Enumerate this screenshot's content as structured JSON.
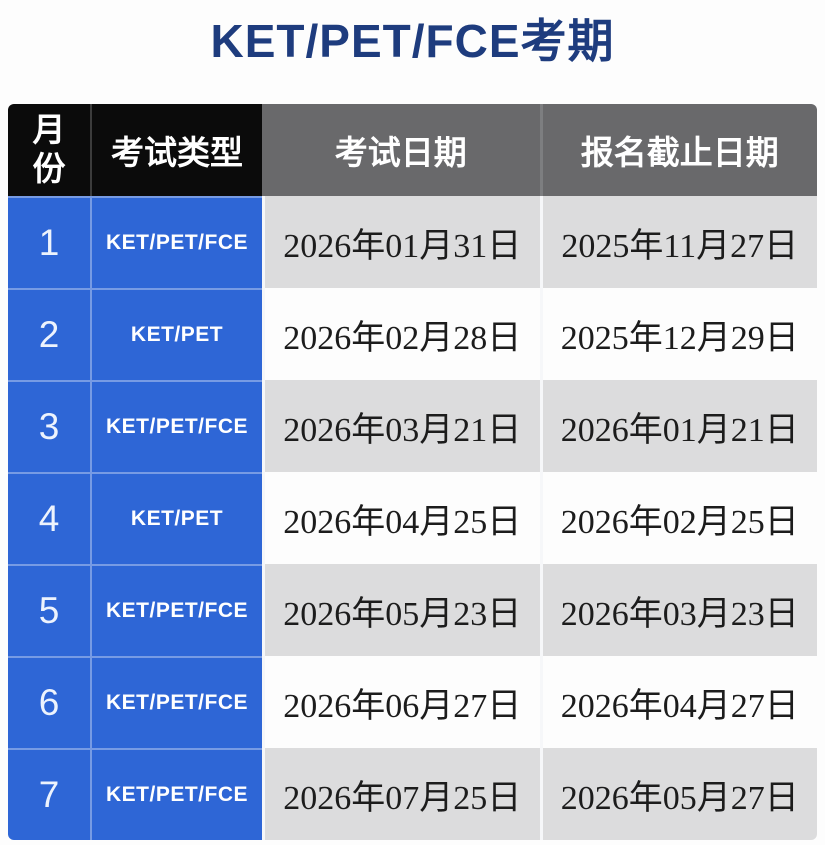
{
  "page": {
    "title": "KET/PET/FCE考期"
  },
  "colors": {
    "title_navy": "#1e3c7e",
    "accent_blue": "#2e66d6",
    "header_black": "#0b0b0b",
    "header_gray": "#69696b",
    "row_stripe_gray": "#dcdcdd",
    "row_stripe_white": "#fdfdfd"
  },
  "table": {
    "headers": [
      "月份",
      "考试类型",
      "考试日期",
      "报名截止日期"
    ],
    "rows": [
      {
        "month": "1",
        "type": "KET/PET/FCE",
        "exam_date": "2026年01月31日",
        "deadline": "2025年11月27日"
      },
      {
        "month": "2",
        "type": "KET/PET",
        "exam_date": "2026年02月28日",
        "deadline": "2025年12月29日"
      },
      {
        "month": "3",
        "type": "KET/PET/FCE",
        "exam_date": "2026年03月21日",
        "deadline": "2026年01月21日"
      },
      {
        "month": "4",
        "type": "KET/PET",
        "exam_date": "2026年04月25日",
        "deadline": "2026年02月25日"
      },
      {
        "month": "5",
        "type": "KET/PET/FCE",
        "exam_date": "2026年05月23日",
        "deadline": "2026年03月23日"
      },
      {
        "month": "6",
        "type": "KET/PET/FCE",
        "exam_date": "2026年06月27日",
        "deadline": "2026年04月27日"
      },
      {
        "month": "7",
        "type": "KET/PET/FCE",
        "exam_date": "2026年07月25日",
        "deadline": "2026年05月27日"
      }
    ]
  }
}
